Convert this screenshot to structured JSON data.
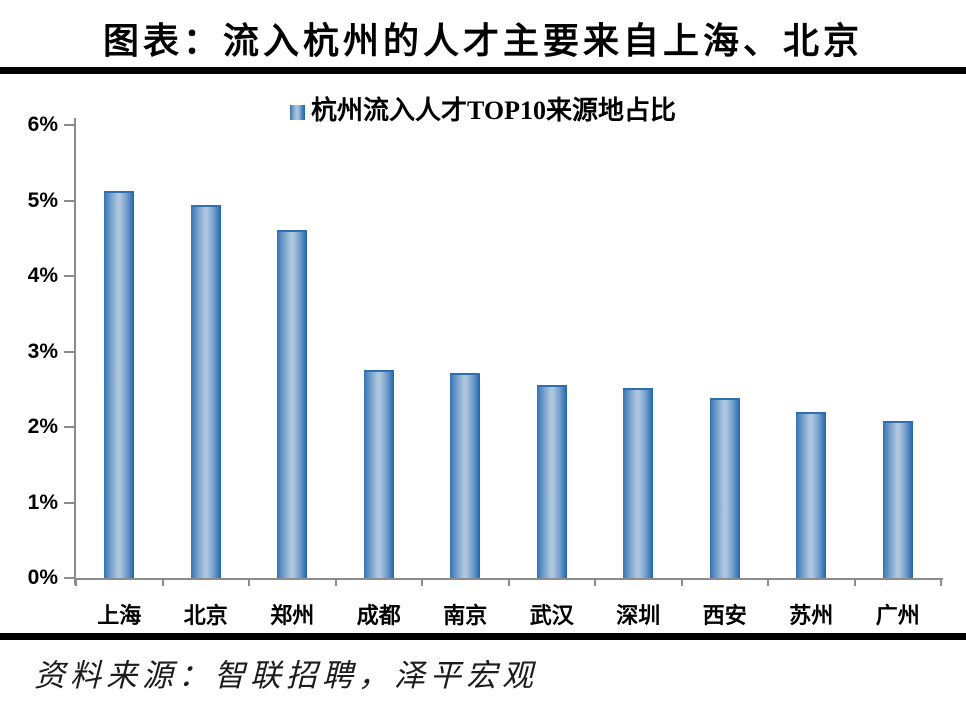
{
  "header": {
    "title": "图表：流入杭州的人才主要来自上海、北京"
  },
  "footer": {
    "source": "资料来源：智联招聘，泽平宏观"
  },
  "colors": {
    "bar_edge": "#2E74B5",
    "bar_center": "#AEC6DE",
    "axis": "#8C8C8C",
    "divider": "#000000",
    "background": "#FFFFFF",
    "text": "#000000"
  },
  "chart_data": {
    "type": "bar",
    "title": "杭州流入人才TOP10来源地占比",
    "legend": [
      "杭州流入人才TOP10来源地占比"
    ],
    "legend_position": "top-center",
    "categories": [
      "上海",
      "北京",
      "郑州",
      "成都",
      "南京",
      "武汉",
      "深圳",
      "西安",
      "苏州",
      "广州"
    ],
    "values": [
      5.12,
      4.94,
      4.61,
      2.76,
      2.71,
      2.55,
      2.51,
      2.38,
      2.2,
      2.08
    ],
    "unit": "%",
    "xlabel": "",
    "ylabel": "",
    "ylim": [
      0,
      6
    ],
    "ytick_step": 1,
    "ytick_labels": [
      "0%",
      "1%",
      "2%",
      "3%",
      "4%",
      "5%",
      "6%"
    ],
    "grid": false
  }
}
